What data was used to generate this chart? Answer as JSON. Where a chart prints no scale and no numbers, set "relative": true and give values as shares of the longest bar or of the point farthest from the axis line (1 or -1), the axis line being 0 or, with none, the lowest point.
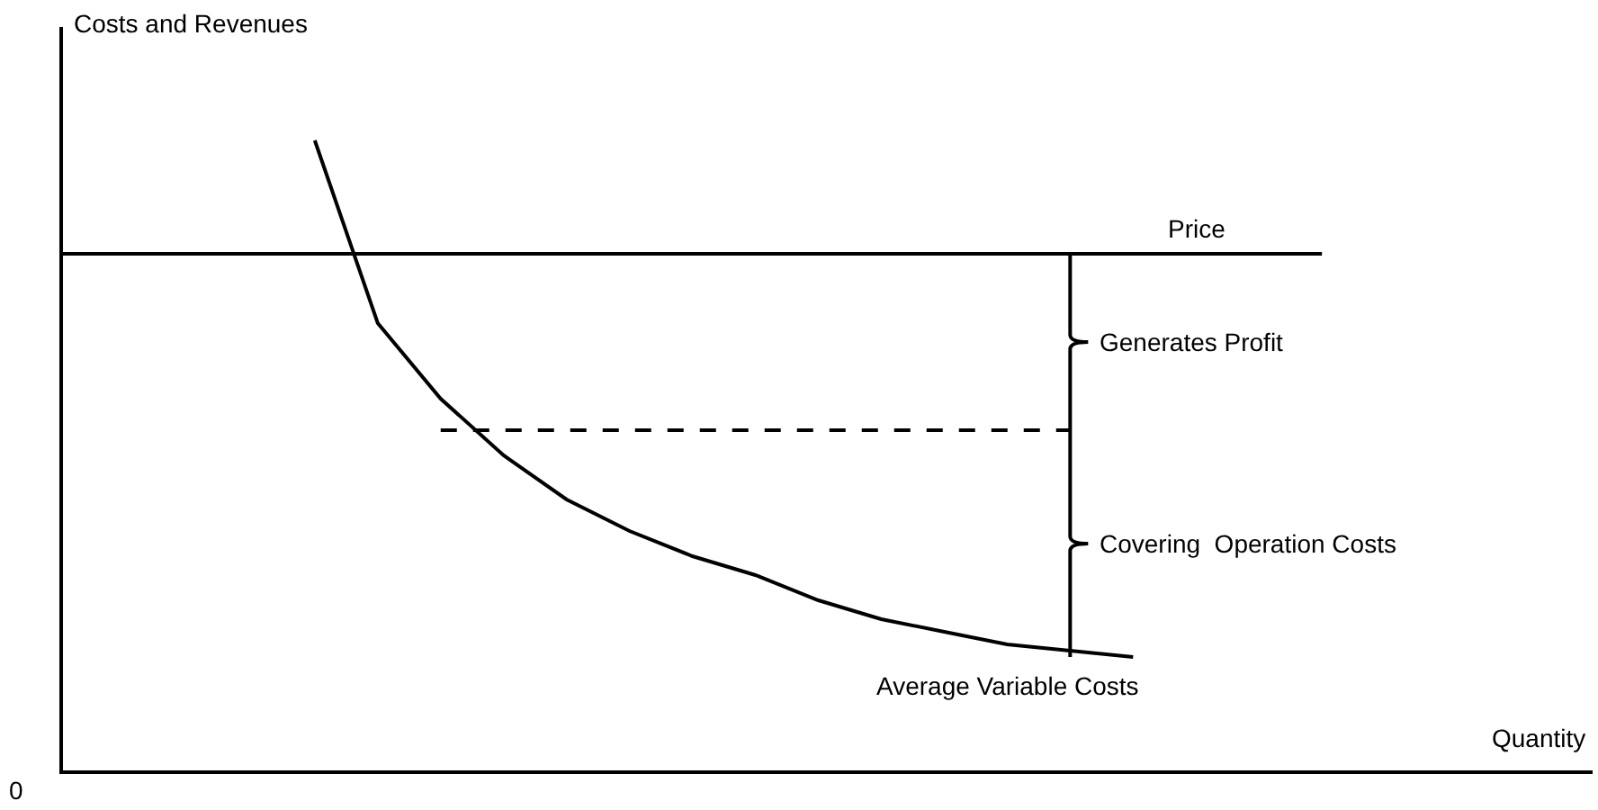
{
  "chart_data": {
    "type": "line",
    "relative": true,
    "xlabel": "Quantity",
    "ylabel": "Costs and Revenues",
    "categories": [
      null,
      null,
      null,
      null,
      null,
      null,
      null,
      null,
      null,
      null,
      null,
      null,
      null,
      null,
      null,
      null,
      null,
      null,
      null,
      null,
      null,
      null,
      null,
      null,
      null
    ],
    "series": [
      {
        "name": "Price",
        "color": "#000000",
        "line_style": "solid",
        "values": [
          0.82,
          0.82,
          0.82,
          0.82,
          0.82,
          0.82,
          0.82,
          0.82,
          0.82,
          0.82,
          0.82,
          0.82,
          0.82,
          0.82,
          0.82,
          0.82,
          0.82,
          0.82,
          0.82,
          0.82,
          0.82,
          null,
          null,
          null,
          null
        ]
      },
      {
        "color": "#000000",
        "line_style": "dashed",
        "values": [
          null,
          null,
          null,
          null,
          null,
          null,
          0.54,
          0.54,
          0.54,
          0.54,
          0.54,
          0.54,
          0.54,
          0.54,
          0.54,
          0.54,
          0.54,
          null,
          null,
          null,
          null,
          null,
          null,
          null,
          null
        ]
      },
      {
        "name": "Average Variable Costs",
        "color": "#000000",
        "line_style": "solid",
        "values": [
          null,
          null,
          null,
          null,
          1.0,
          0.71,
          0.59,
          0.5,
          0.43,
          0.38,
          0.34,
          0.31,
          0.27,
          0.24,
          0.22,
          0.2,
          0.19,
          0.18,
          null,
          null,
          null,
          null,
          null,
          null,
          null
        ]
      }
    ],
    "annotations": [
      "0",
      "Generates Profit",
      "Covering  Operation Costs"
    ],
    "legend": false,
    "grid": false,
    "marker": "none"
  }
}
